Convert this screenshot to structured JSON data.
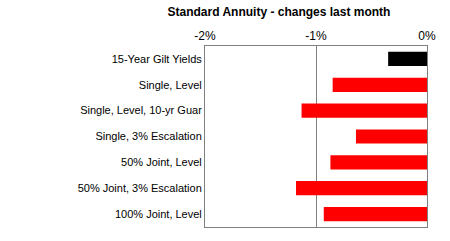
{
  "chart_data": {
    "type": "bar",
    "orientation": "horizontal",
    "title": "Standard Annuity - changes last month",
    "categories": [
      "15-Year Gilt Yields",
      "Single, Level",
      "Single, Level, 10-yr Guar",
      "Single, 3% Escalation",
      "50% Joint, Level",
      "50% Joint, 3% Escalation",
      "100% Joint, Level"
    ],
    "values": [
      -0.35,
      -0.85,
      -1.13,
      -0.64,
      -0.87,
      -1.18,
      -0.93
    ],
    "colors": [
      "#000000",
      "#ff0000",
      "#ff0000",
      "#ff0000",
      "#ff0000",
      "#ff0000",
      "#ff0000"
    ],
    "xlim": [
      -2,
      0
    ],
    "xticks": [
      {
        "value": -2,
        "label": "-2%"
      },
      {
        "value": -1,
        "label": "-1%"
      },
      {
        "value": 0,
        "label": "0%"
      }
    ],
    "grid": true
  }
}
